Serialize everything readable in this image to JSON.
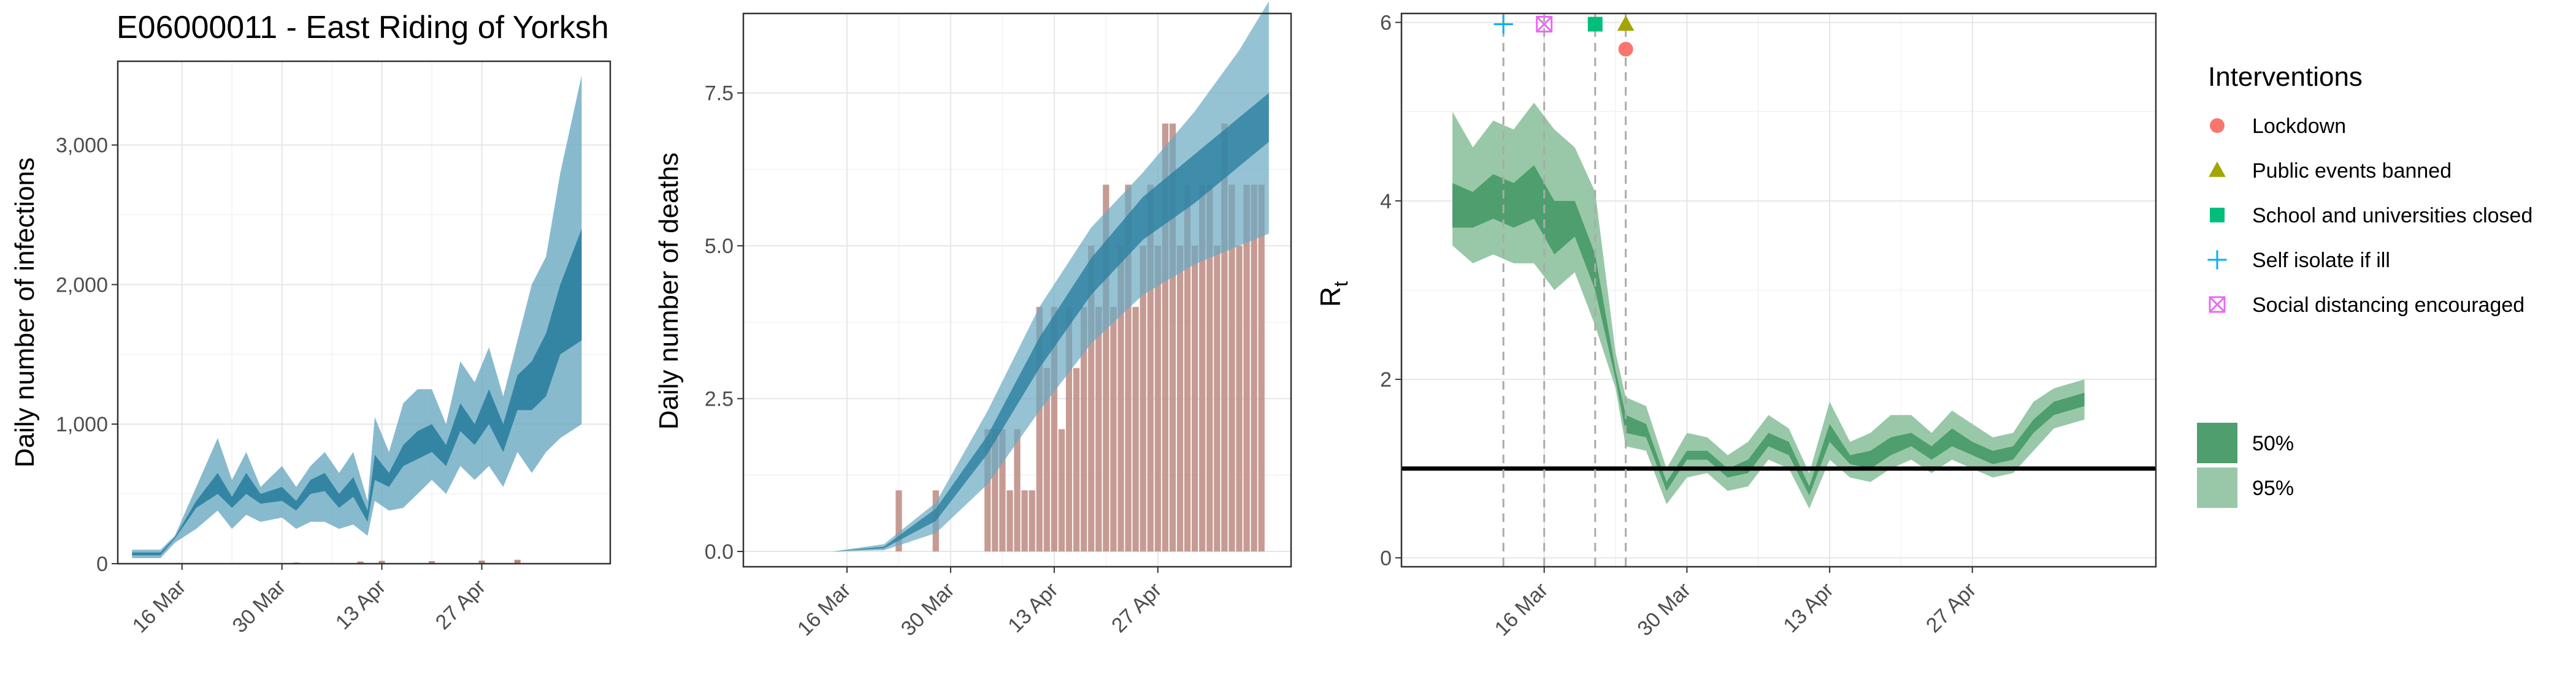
{
  "figure_title": "E06000011 - East Riding of Yorksh",
  "colors": {
    "infection_band_95": "#6aa9c2",
    "infection_band_50": "#2b7fa0",
    "deaths_band_95": "#6aa9c2",
    "deaths_band_50": "#2b7fa0",
    "observed_bar": "#bc8a80",
    "rt_band_95": "#99c8a8",
    "rt_band_50": "#4e9e6e",
    "threshold_line": "#000000",
    "lockdown": "#f8766d",
    "public_events": "#a3a500",
    "school": "#00bf7d",
    "self_isolate": "#00b0f6",
    "social_distancing": "#e76bf3"
  },
  "legend": {
    "title": "Interventions",
    "items": [
      {
        "label": "Lockdown",
        "shape": "circle",
        "color_key": "lockdown"
      },
      {
        "label": "Public events banned",
        "shape": "triangle",
        "color_key": "public_events"
      },
      {
        "label": "School and universities closed",
        "shape": "square",
        "color_key": "school"
      },
      {
        "label": "Self isolate if ill",
        "shape": "plus",
        "color_key": "self_isolate"
      },
      {
        "label": "Social distancing encouraged",
        "shape": "boxcross",
        "color_key": "social_distancing"
      }
    ],
    "band_items": [
      {
        "label": "50%",
        "color_key": "rt_band_50"
      },
      {
        "label": "95%",
        "color_key": "rt_band_95"
      }
    ]
  },
  "chart_data": [
    {
      "type": "area",
      "id": "infections",
      "title": "E06000011 - East Riding of Yorksh",
      "ylabel": "Daily number of infections",
      "xlabel": "",
      "x_domain": [
        "2020-03-07",
        "2020-05-15"
      ],
      "ylim": [
        0,
        3600
      ],
      "y_ticks": [
        0,
        1000,
        2000,
        3000
      ],
      "y_tick_labels": [
        "0",
        "1,000",
        "2,000",
        "3,000"
      ],
      "x_ticks": [
        "2020-03-16",
        "2020-03-30",
        "2020-04-13",
        "2020-04-27"
      ],
      "x_tick_labels": [
        "16 Mar",
        "30 Mar",
        "13 Apr",
        "27 Apr"
      ],
      "grid": true,
      "dates": [
        "2020-03-09",
        "2020-03-13",
        "2020-03-15",
        "2020-03-18",
        "2020-03-21",
        "2020-03-23",
        "2020-03-25",
        "2020-03-27",
        "2020-03-30",
        "2020-04-01",
        "2020-04-03",
        "2020-04-05",
        "2020-04-07",
        "2020-04-09",
        "2020-04-11",
        "2020-04-12",
        "2020-04-14",
        "2020-04-16",
        "2020-04-18",
        "2020-04-20",
        "2020-04-22",
        "2020-04-24",
        "2020-04-26",
        "2020-04-28",
        "2020-04-30",
        "2020-05-02",
        "2020-05-04",
        "2020-05-06",
        "2020-05-08",
        "2020-05-11"
      ],
      "series": [
        {
          "name": "95%",
          "lower": [
            40,
            40,
            150,
            250,
            380,
            250,
            350,
            300,
            330,
            250,
            300,
            300,
            250,
            280,
            200,
            450,
            380,
            400,
            500,
            600,
            500,
            700,
            600,
            700,
            550,
            800,
            650,
            800,
            900,
            1000
          ],
          "upper": [
            100,
            100,
            200,
            550,
            900,
            600,
            800,
            550,
            700,
            550,
            700,
            800,
            650,
            800,
            450,
            1050,
            800,
            1150,
            1250,
            1250,
            1000,
            1450,
            1300,
            1550,
            1200,
            1600,
            2000,
            2200,
            2800,
            3500
          ]
        },
        {
          "name": "50%",
          "lower": [
            60,
            60,
            180,
            400,
            500,
            400,
            500,
            430,
            450,
            380,
            500,
            520,
            400,
            480,
            300,
            600,
            550,
            700,
            750,
            800,
            700,
            950,
            850,
            1000,
            800,
            1100,
            1100,
            1200,
            1500,
            1600
          ],
          "upper": [
            80,
            80,
            190,
            450,
            650,
            480,
            650,
            500,
            550,
            450,
            600,
            650,
            500,
            620,
            380,
            780,
            650,
            850,
            950,
            1000,
            850,
            1150,
            1000,
            1250,
            1000,
            1350,
            1450,
            1650,
            2000,
            2400
          ]
        }
      ],
      "observed": {
        "dates": [
          "2020-04-01",
          "2020-04-10",
          "2020-04-13",
          "2020-04-20",
          "2020-04-27",
          "2020-05-02"
        ],
        "values": [
          8,
          15,
          20,
          18,
          22,
          28
        ]
      }
    },
    {
      "type": "bar",
      "id": "deaths",
      "ylabel": "Daily number of deaths",
      "xlabel": "",
      "x_domain": [
        "2020-03-02",
        "2020-05-15"
      ],
      "ylim": [
        -0.25,
        8.8
      ],
      "y_ticks": [
        0,
        2.5,
        5,
        7.5
      ],
      "y_tick_labels": [
        "0.0",
        "2.5",
        "5.0",
        "7.5"
      ],
      "x_ticks": [
        "2020-03-16",
        "2020-03-30",
        "2020-04-13",
        "2020-04-27"
      ],
      "x_tick_labels": [
        "16 Mar",
        "30 Mar",
        "13 Apr",
        "27 Apr"
      ],
      "grid": true,
      "bars": {
        "dates": [
          "2020-03-23",
          "2020-03-28",
          "2020-04-04",
          "2020-04-05",
          "2020-04-06",
          "2020-04-07",
          "2020-04-08",
          "2020-04-09",
          "2020-04-10",
          "2020-04-11",
          "2020-04-12",
          "2020-04-13",
          "2020-04-14",
          "2020-04-15",
          "2020-04-16",
          "2020-04-17",
          "2020-04-18",
          "2020-04-19",
          "2020-04-20",
          "2020-04-21",
          "2020-04-22",
          "2020-04-23",
          "2020-04-24",
          "2020-04-25",
          "2020-04-26",
          "2020-04-27",
          "2020-04-28",
          "2020-04-29",
          "2020-04-30",
          "2020-05-01",
          "2020-05-02",
          "2020-05-03",
          "2020-05-04",
          "2020-05-05",
          "2020-05-06",
          "2020-05-07",
          "2020-05-08",
          "2020-05-09",
          "2020-05-10",
          "2020-05-11"
        ],
        "values": [
          1,
          1,
          2,
          2,
          2,
          1,
          2,
          1,
          1,
          4,
          3,
          4,
          2,
          4,
          3,
          4,
          5,
          4,
          6,
          4,
          5,
          6,
          4,
          5,
          6,
          5,
          7,
          7,
          5,
          6,
          5,
          6,
          6,
          5,
          7,
          6,
          5,
          6,
          6,
          6
        ]
      },
      "series": [
        {
          "name": "95%",
          "dates": [
            "2020-03-14",
            "2020-03-21",
            "2020-03-28",
            "2020-04-04",
            "2020-04-11",
            "2020-04-18",
            "2020-04-25",
            "2020-05-02",
            "2020-05-08",
            "2020-05-12"
          ],
          "lower": [
            0,
            0.02,
            0.3,
            1.1,
            2.3,
            3.4,
            4.2,
            4.7,
            5.0,
            5.2
          ],
          "upper": [
            0,
            0.12,
            0.8,
            2.3,
            4.0,
            5.3,
            6.2,
            7.2,
            8.2,
            9.0
          ]
        },
        {
          "name": "50%",
          "dates": [
            "2020-03-14",
            "2020-03-21",
            "2020-03-28",
            "2020-04-04",
            "2020-04-11",
            "2020-04-18",
            "2020-04-25",
            "2020-05-02",
            "2020-05-08",
            "2020-05-12"
          ],
          "lower": [
            0,
            0.05,
            0.5,
            1.6,
            3.0,
            4.2,
            5.1,
            5.7,
            6.3,
            6.7
          ],
          "upper": [
            0,
            0.08,
            0.7,
            1.9,
            3.5,
            4.8,
            5.8,
            6.5,
            7.1,
            7.5
          ]
        }
      ]
    },
    {
      "type": "area",
      "id": "rt",
      "ylabel": "Rt",
      "ylabel_main": "R",
      "ylabel_sub": "t",
      "xlabel": "",
      "x_domain": [
        "2020-03-02",
        "2020-05-15"
      ],
      "ylim": [
        -0.1,
        6.1
      ],
      "y_ticks": [
        0,
        2,
        4,
        6
      ],
      "y_tick_labels": [
        "0",
        "2",
        "4",
        "6"
      ],
      "x_ticks": [
        "2020-03-16",
        "2020-03-30",
        "2020-04-13",
        "2020-04-27"
      ],
      "x_tick_labels": [
        "16 Mar",
        "30 Mar",
        "13 Apr",
        "27 Apr"
      ],
      "grid": true,
      "threshold": 1,
      "dates": [
        "2020-03-07",
        "2020-03-09",
        "2020-03-11",
        "2020-03-13",
        "2020-03-15",
        "2020-03-17",
        "2020-03-19",
        "2020-03-21",
        "2020-03-23",
        "2020-03-24",
        "2020-03-26",
        "2020-03-28",
        "2020-03-30",
        "2020-04-01",
        "2020-04-03",
        "2020-04-05",
        "2020-04-07",
        "2020-04-09",
        "2020-04-11",
        "2020-04-13",
        "2020-04-15",
        "2020-04-17",
        "2020-04-19",
        "2020-04-21",
        "2020-04-23",
        "2020-04-25",
        "2020-04-27",
        "2020-04-29",
        "2020-05-01",
        "2020-05-03",
        "2020-05-05",
        "2020-05-08"
      ],
      "series": [
        {
          "name": "95%",
          "lower": [
            3.5,
            3.3,
            3.4,
            3.3,
            3.3,
            3.0,
            3.2,
            2.6,
            1.9,
            1.25,
            1.2,
            0.6,
            0.9,
            0.95,
            0.75,
            0.8,
            1.1,
            1.0,
            0.55,
            1.1,
            0.9,
            0.85,
            1.0,
            1.1,
            0.95,
            1.1,
            1.0,
            0.9,
            0.95,
            1.2,
            1.45,
            1.55
          ],
          "upper": [
            5.0,
            4.6,
            4.9,
            4.8,
            5.1,
            4.8,
            4.6,
            4.1,
            2.3,
            1.8,
            1.7,
            1.0,
            1.4,
            1.35,
            1.15,
            1.3,
            1.6,
            1.45,
            0.95,
            1.75,
            1.3,
            1.4,
            1.6,
            1.6,
            1.4,
            1.65,
            1.5,
            1.35,
            1.4,
            1.75,
            1.9,
            2.0
          ]
        },
        {
          "name": "50%",
          "lower": [
            3.7,
            3.7,
            3.8,
            3.7,
            3.8,
            3.4,
            3.6,
            3.0,
            2.0,
            1.4,
            1.35,
            0.75,
            1.1,
            1.1,
            0.9,
            0.95,
            1.25,
            1.15,
            0.7,
            1.3,
            1.05,
            1.0,
            1.15,
            1.25,
            1.1,
            1.25,
            1.15,
            1.05,
            1.1,
            1.4,
            1.6,
            1.7
          ],
          "upper": [
            4.2,
            4.1,
            4.3,
            4.2,
            4.4,
            4.0,
            4.0,
            3.4,
            2.1,
            1.6,
            1.5,
            0.85,
            1.2,
            1.2,
            1.0,
            1.1,
            1.4,
            1.3,
            0.8,
            1.5,
            1.15,
            1.2,
            1.35,
            1.4,
            1.25,
            1.45,
            1.3,
            1.2,
            1.25,
            1.55,
            1.75,
            1.85
          ]
        }
      ],
      "interventions": [
        {
          "key": "self_isolate",
          "date": "2020-03-12",
          "marker_y": 5.98
        },
        {
          "key": "social_distancing",
          "date": "2020-03-16",
          "marker_y": 5.98
        },
        {
          "key": "school",
          "date": "2020-03-21",
          "marker_y": 5.98
        },
        {
          "key": "public_events",
          "date": "2020-03-24",
          "marker_y": 5.98
        },
        {
          "key": "lockdown",
          "date": "2020-03-24",
          "marker_y": 5.7
        }
      ]
    }
  ]
}
